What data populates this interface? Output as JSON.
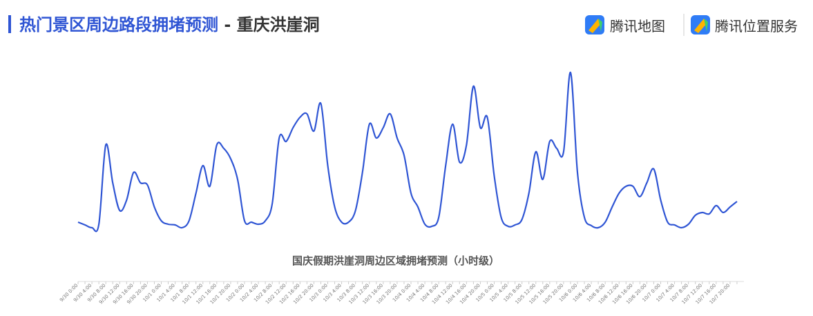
{
  "header": {
    "title": "热门景区周边路段拥堵预测",
    "subtitle": " - 重庆洪崖洞",
    "logos": [
      "腾讯地图",
      "腾讯位置服务"
    ]
  },
  "chart_data": {
    "type": "line",
    "title": "国庆假期洪崖洞周边区域拥堵预测（小时级）",
    "color": "#2f55d4",
    "categories": [
      "9/30 0:00",
      null,
      "9/30 4:00",
      null,
      "9/30 8:00",
      null,
      "9/30 12:00",
      null,
      "9/30 16:00",
      null,
      "9/30 20:00",
      null,
      "10/1 0:00",
      null,
      "10/1 4:00",
      null,
      "10/1 8:00",
      null,
      "10/1 12:00",
      null,
      "10/1 16:00",
      null,
      "10/1 20:00",
      null,
      "10/2 0:00",
      null,
      "10/2 4:00",
      null,
      "10/2 8:00",
      null,
      "10/2 12:00",
      null,
      "10/2 16:00",
      null,
      "10/2 20:00",
      null,
      "10/3 0:00",
      null,
      "10/3 4:00",
      null,
      "10/3 8:00",
      null,
      "10/3 12:00",
      null,
      "10/3 16:00",
      null,
      "10/3 20:00",
      null,
      "10/4 0:00",
      null,
      "10/4 4:00",
      null,
      "10/4 8:00",
      null,
      "10/4 12:00",
      null,
      "10/4 16:00",
      null,
      "10/4 20:00",
      null,
      "10/5 0:00",
      null,
      "10/5 4:00",
      null,
      "10/5 8:00",
      null,
      "10/5 12:00",
      null,
      "10/5 16:00",
      null,
      "10/5 20:00",
      null,
      "10/6 0:00",
      null,
      "10/6 4:00",
      null,
      "10/6 8:00",
      null,
      "10/6 12:00",
      null,
      "10/6 16:00",
      null,
      "10/6 20:00",
      null,
      "10/7 0:00",
      null,
      "10/7 4:00",
      null,
      "10/7 8:00",
      null,
      "10/7 12:00",
      null,
      "10/7 16:00",
      null,
      "10/7 20:00",
      null
    ],
    "values": [
      18,
      14,
      10,
      15,
      130,
      75,
      35,
      50,
      90,
      75,
      72,
      40,
      20,
      15,
      14,
      10,
      20,
      60,
      100,
      70,
      130,
      125,
      110,
      80,
      20,
      18,
      15,
      20,
      45,
      140,
      135,
      155,
      170,
      175,
      150,
      190,
      100,
      40,
      18,
      18,
      35,
      90,
      160,
      140,
      155,
      175,
      140,
      115,
      60,
      40,
      15,
      12,
      25,
      100,
      160,
      105,
      130,
      215,
      155,
      170,
      85,
      25,
      12,
      14,
      22,
      60,
      120,
      80,
      135,
      125,
      120,
      235,
      90,
      25,
      13,
      10,
      18,
      40,
      60,
      70,
      70,
      55,
      75,
      95,
      50,
      18,
      14,
      10,
      15,
      28,
      32,
      30,
      42,
      32,
      40,
      48
    ]
  }
}
